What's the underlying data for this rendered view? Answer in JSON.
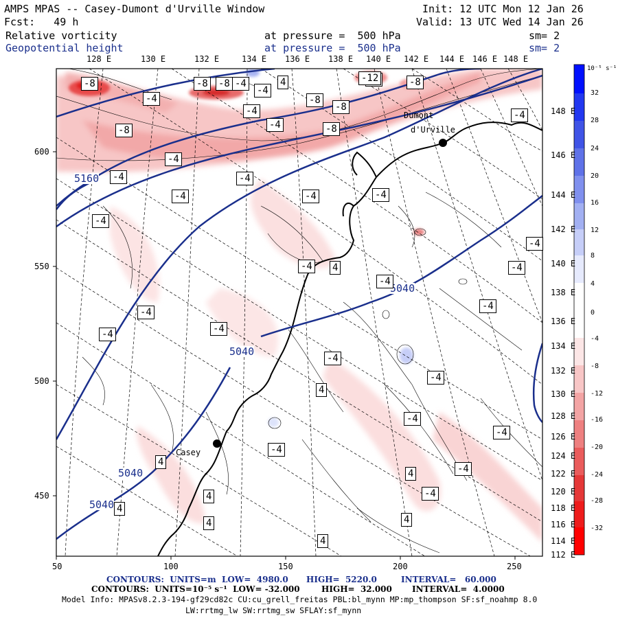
{
  "header": {
    "title": "AMPS MPAS -- Casey-Dumont d'Urville Window",
    "init": "Init: 12 UTC Mon 12 Jan 26",
    "fcst": "Fcst:   49 h",
    "valid": "Valid: 13 UTC Wed 14 Jan 26",
    "field1": "Relative vorticity",
    "field1_level": "at pressure =  500 hPa",
    "field1_sm": "sm= 2",
    "field2": "Geopotential height",
    "field2_level": "at pressure =  500 hPa",
    "field2_sm": "sm= 2"
  },
  "longitudes_top": [
    "128 E",
    "130 E",
    "132 E",
    "134 E",
    "136 E",
    "138 E",
    "140 E",
    "142 E",
    "144 E",
    "146 E",
    "148 E"
  ],
  "longitudes_right": [
    "148 E",
    "146 E",
    "144 E",
    "142 E",
    "140 E",
    "138 E",
    "136 E",
    "134 E",
    "132 E",
    "130 E",
    "128 E",
    "126 E",
    "124 E",
    "122 E",
    "120 E",
    "118 E",
    "116 E",
    "114 E",
    "112 E"
  ],
  "x_ticks": [
    "50",
    "100",
    "150",
    "200",
    "250"
  ],
  "y_ticks": [
    "600",
    "550",
    "500",
    "450"
  ],
  "colorbar": {
    "units": "10⁻⁵ s⁻¹",
    "labels": [
      "32",
      "28",
      "24",
      "20",
      "16",
      "12",
      "8",
      "4",
      "0",
      "-4",
      "-8",
      "-12",
      "-16",
      "-20",
      "-24",
      "-28",
      "-32"
    ],
    "colors": [
      "#0010ff",
      "#2238f0",
      "#4054e6",
      "#5f72e8",
      "#8090ee",
      "#a2b0f2",
      "#c6ceF8",
      "#e6eafd",
      "#ffffff",
      "#fce6e6",
      "#f8c6c6",
      "#f3a4a4",
      "#ee8080",
      "#ea5c5c",
      "#e53838",
      "#ee1c1c",
      "#ff0000"
    ]
  },
  "places": [
    {
      "name": "Dumont",
      "name2": "d'Urville"
    },
    {
      "name": "Casey"
    }
  ],
  "height_labels": [
    "5160",
    "5040",
    "5040",
    "5040",
    "5040"
  ],
  "vort_labels": [
    "-8",
    "-8",
    "-8",
    "-4",
    "-4",
    "-12",
    "-8",
    "-4",
    "-8",
    "-8",
    "-4",
    "-8",
    "-8",
    "-4",
    "-4",
    "-4",
    "-4",
    "-4",
    "-4",
    "-4",
    "-4",
    "-4",
    "-4",
    "-4",
    "-4",
    "-4",
    "4",
    "4",
    "4",
    "4",
    "4",
    "4",
    "4",
    "4",
    "4",
    "-4",
    "-4",
    "-4",
    "-4",
    "-4",
    "-4",
    "-4",
    "-4",
    "-4",
    "-4",
    "-4",
    "-4",
    "4"
  ],
  "footer": {
    "line1_a": "CONTOURS:  UNITS=m  LOW=  4980.0",
    "line1_b": "HIGH=  5220.0",
    "line1_c": "INTERVAL=   60.000",
    "line2_a": "CONTOURS:  UNITS=10⁻⁵ s⁻¹  LOW= -32.000",
    "line2_b": "HIGH=  32.000",
    "line2_c": "INTERVAL=  4.0000",
    "model_info": "Model Info: MPASv8.2.3-194-gf29cd82c CU:cu_grell_freitas PBL:bl_mynn MP:mp_thompson SF:sf_noahmp 8.0",
    "model_info2": "LW:rrtmg_lw SW:rrtmg_sw SFLAY:sf_mynn"
  }
}
